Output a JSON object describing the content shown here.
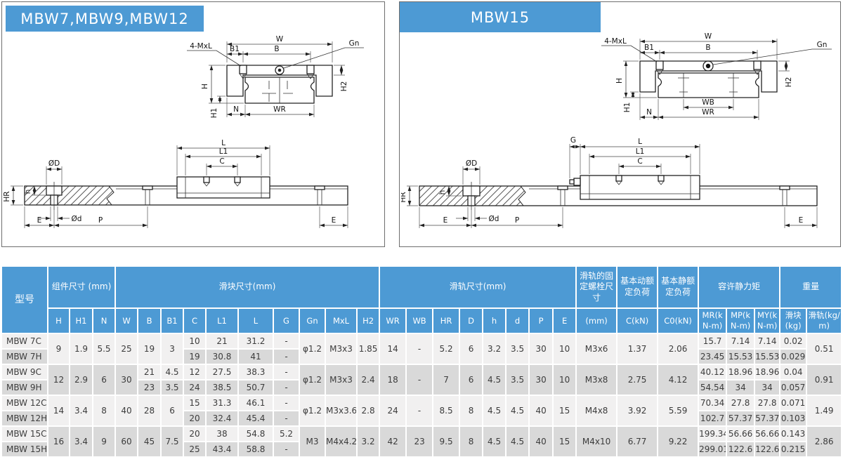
{
  "colors": {
    "accent": "#4d9ad4",
    "row_light": "#f1f0f0",
    "row_dark": "#d9d9d9"
  },
  "panels": [
    {
      "title": "MBW7,MBW9,MBW12",
      "labels": {
        "w": "W",
        "b1": "B1",
        "b": "B",
        "gn": "Gn",
        "mxl": "4-MxL",
        "h": "H",
        "h1": "H1",
        "h2": "H2",
        "n": "N",
        "wr": "WR",
        "l": "L",
        "l1": "L1",
        "c": "C",
        "diaD": "ØD",
        "diad": "Ød",
        "hr": "HR",
        "hs": "h",
        "e": "E",
        "p": "P"
      }
    },
    {
      "title": "MBW15",
      "labels": {
        "w": "W",
        "b1": "B1",
        "b": "B",
        "gn": "Gn",
        "mxl": "4-MxL",
        "h": "H",
        "h1": "H1",
        "h2": "H2",
        "n": "N",
        "wr": "WR",
        "wb": "WB",
        "g": "G",
        "l": "L",
        "l1": "L1",
        "c": "C",
        "diaD": "ØD",
        "diad": "Ød",
        "hr": "HR",
        "hs": "h",
        "e": "E",
        "p": "P"
      }
    }
  ],
  "table": {
    "model_header": "型号",
    "groups": [
      "组件尺寸 (mm)",
      "滑块尺寸(mm)",
      "滑轨尺寸(mm)",
      "滑轨的固定螺栓尺寸",
      "基本动额定负荷",
      "基本静额定负荷",
      "容许静力矩",
      "重量"
    ],
    "cols": [
      "H",
      "H1",
      "N",
      "W",
      "B",
      "B1",
      "C",
      "L1",
      "L",
      "G",
      "Gn",
      "MxL",
      "H2",
      "WR",
      "WB",
      "HR",
      "D",
      "h",
      "d",
      "P",
      "E",
      "(mm)",
      "C(kN)",
      "C0(kN)",
      "MR(kN-m)",
      "MP(kN-m)",
      "MY(kN-m)",
      "滑块(kg)",
      "滑轨(kg/m)"
    ],
    "rows": [
      [
        {
          "v": "MBW 7C"
        },
        {
          "v": "9",
          "rs": 2
        },
        {
          "v": "1.9",
          "rs": 2
        },
        {
          "v": "5.5",
          "rs": 2
        },
        {
          "v": "25",
          "rs": 2
        },
        {
          "v": "19",
          "rs": 2
        },
        {
          "v": "3",
          "rs": 2
        },
        {
          "v": "10"
        },
        {
          "v": "21"
        },
        {
          "v": "31.2"
        },
        {
          "v": "-"
        },
        {
          "v": "φ1.2",
          "rs": 2
        },
        {
          "v": "M3x3",
          "rs": 2
        },
        {
          "v": "1.85",
          "rs": 2
        },
        {
          "v": "14",
          "rs": 2
        },
        {
          "v": "-",
          "rs": 2
        },
        {
          "v": "5.2",
          "rs": 2
        },
        {
          "v": "6",
          "rs": 2
        },
        {
          "v": "3.2",
          "rs": 2
        },
        {
          "v": "3.5",
          "rs": 2
        },
        {
          "v": "30",
          "rs": 2
        },
        {
          "v": "10",
          "rs": 2
        },
        {
          "v": "M3x6",
          "rs": 2
        },
        {
          "v": "1.37",
          "rs": 2
        },
        {
          "v": "2.06",
          "rs": 2
        },
        {
          "v": "15.7"
        },
        {
          "v": "7.14"
        },
        {
          "v": "7.14"
        },
        {
          "v": "0.02"
        },
        {
          "v": "0.51",
          "rs": 2
        }
      ],
      [
        {
          "v": "MBW 7H"
        },
        {
          "v": "19"
        },
        {
          "v": "30.8"
        },
        {
          "v": "41"
        },
        {
          "v": "-"
        },
        {
          "v": "23.45"
        },
        {
          "v": "15.53"
        },
        {
          "v": "15.53"
        },
        {
          "v": "0.029"
        }
      ],
      [
        {
          "v": "MBW 9C"
        },
        {
          "v": "12",
          "rs": 2
        },
        {
          "v": "2.9",
          "rs": 2
        },
        {
          "v": "6",
          "rs": 2
        },
        {
          "v": "30",
          "rs": 2
        },
        {
          "v": "21"
        },
        {
          "v": "4.5"
        },
        {
          "v": "12"
        },
        {
          "v": "27.5"
        },
        {
          "v": "38.3"
        },
        {
          "v": "-"
        },
        {
          "v": "φ1.2",
          "rs": 2
        },
        {
          "v": "M3x3",
          "rs": 2
        },
        {
          "v": "2.4",
          "rs": 2
        },
        {
          "v": "18",
          "rs": 2
        },
        {
          "v": "-",
          "rs": 2
        },
        {
          "v": "7",
          "rs": 2
        },
        {
          "v": "6",
          "rs": 2
        },
        {
          "v": "4.5",
          "rs": 2
        },
        {
          "v": "3.5",
          "rs": 2
        },
        {
          "v": "30",
          "rs": 2
        },
        {
          "v": "10",
          "rs": 2
        },
        {
          "v": "M3x8",
          "rs": 2
        },
        {
          "v": "2.75",
          "rs": 2
        },
        {
          "v": "4.12",
          "rs": 2
        },
        {
          "v": "40.12"
        },
        {
          "v": "18.96"
        },
        {
          "v": "18.96"
        },
        {
          "v": "0.04"
        },
        {
          "v": "0.91",
          "rs": 2
        }
      ],
      [
        {
          "v": "MBW 9H"
        },
        {
          "v": "23"
        },
        {
          "v": "3.5"
        },
        {
          "v": "24"
        },
        {
          "v": "38.5"
        },
        {
          "v": "50.7"
        },
        {
          "v": "-"
        },
        {
          "v": "54.54"
        },
        {
          "v": "34"
        },
        {
          "v": "34"
        },
        {
          "v": "0.057"
        }
      ],
      [
        {
          "v": "MBW 12C"
        },
        {
          "v": "14",
          "rs": 2
        },
        {
          "v": "3.4",
          "rs": 2
        },
        {
          "v": "8",
          "rs": 2
        },
        {
          "v": "40",
          "rs": 2
        },
        {
          "v": "28",
          "rs": 2
        },
        {
          "v": "6",
          "rs": 2
        },
        {
          "v": "15"
        },
        {
          "v": "31.3"
        },
        {
          "v": "46.1"
        },
        {
          "v": "-"
        },
        {
          "v": "φ1.2",
          "rs": 2
        },
        {
          "v": "M3x3.6",
          "rs": 2
        },
        {
          "v": "2.8",
          "rs": 2
        },
        {
          "v": "24",
          "rs": 2
        },
        {
          "v": "-",
          "rs": 2
        },
        {
          "v": "8.5",
          "rs": 2
        },
        {
          "v": "8",
          "rs": 2
        },
        {
          "v": "4.5",
          "rs": 2
        },
        {
          "v": "4.5",
          "rs": 2
        },
        {
          "v": "40",
          "rs": 2
        },
        {
          "v": "15",
          "rs": 2
        },
        {
          "v": "M4x8",
          "rs": 2
        },
        {
          "v": "3.92",
          "rs": 2
        },
        {
          "v": "5.59",
          "rs": 2
        },
        {
          "v": "70.34"
        },
        {
          "v": "27.8"
        },
        {
          "v": "27.8"
        },
        {
          "v": "0.071"
        },
        {
          "v": "1.49",
          "rs": 2
        }
      ],
      [
        {
          "v": "MBW 12H"
        },
        {
          "v": "20"
        },
        {
          "v": "32.4"
        },
        {
          "v": "45.4"
        },
        {
          "v": "-"
        },
        {
          "v": "102.7"
        },
        {
          "v": "57.37"
        },
        {
          "v": "57.37"
        },
        {
          "v": "0.103"
        }
      ],
      [
        {
          "v": "MBW 15C"
        },
        {
          "v": "16",
          "rs": 2
        },
        {
          "v": "3.4",
          "rs": 2
        },
        {
          "v": "9",
          "rs": 2
        },
        {
          "v": "60",
          "rs": 2
        },
        {
          "v": "45",
          "rs": 2
        },
        {
          "v": "7.5",
          "rs": 2
        },
        {
          "v": "20"
        },
        {
          "v": "38"
        },
        {
          "v": "54.8"
        },
        {
          "v": "5.2"
        },
        {
          "v": "M3",
          "rs": 2
        },
        {
          "v": "M4x4.2",
          "rs": 2
        },
        {
          "v": "3.2",
          "rs": 2
        },
        {
          "v": "42",
          "rs": 2
        },
        {
          "v": "23",
          "rs": 2
        },
        {
          "v": "9.5",
          "rs": 2
        },
        {
          "v": "8",
          "rs": 2
        },
        {
          "v": "4.5",
          "rs": 2
        },
        {
          "v": "4.5",
          "rs": 2
        },
        {
          "v": "40",
          "rs": 2
        },
        {
          "v": "15",
          "rs": 2
        },
        {
          "v": "M4x10",
          "rs": 2
        },
        {
          "v": "6.77",
          "rs": 2
        },
        {
          "v": "9.22",
          "rs": 2
        },
        {
          "v": "199.34"
        },
        {
          "v": "56.66"
        },
        {
          "v": "56.66"
        },
        {
          "v": "0.143"
        },
        {
          "v": "2.86",
          "rs": 2
        }
      ],
      [
        {
          "v": "MBW 15H"
        },
        {
          "v": "25"
        },
        {
          "v": "43.4"
        },
        {
          "v": "58.8"
        },
        {
          "v": "-"
        },
        {
          "v": "299.01"
        },
        {
          "v": "122.6"
        },
        {
          "v": "122.6"
        },
        {
          "v": "0.215"
        }
      ]
    ]
  }
}
